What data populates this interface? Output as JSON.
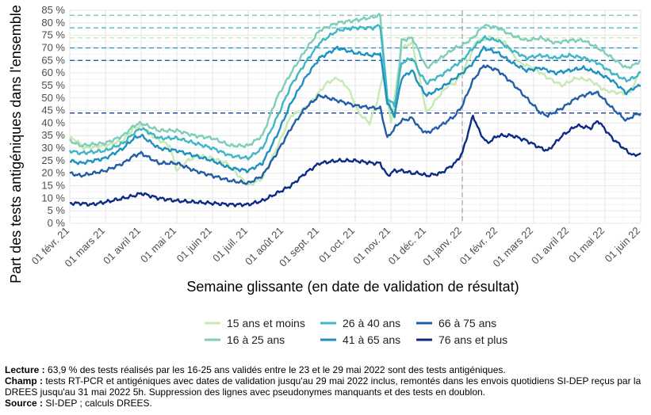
{
  "chart_data": {
    "type": "line",
    "ylabel": "Part des tests antigéniques dans l'ensemble",
    "xlabel": "Semaine glissante (en date de validation de résultat)",
    "ylim": [
      0,
      85
    ],
    "yticks": [
      "0 %",
      "5 %",
      "10 %",
      "15 %",
      "20 %",
      "25 %",
      "30 %",
      "35 %",
      "40 %",
      "45 %",
      "50 %",
      "55 %",
      "60 %",
      "65 %",
      "70 %",
      "75 %",
      "80 %",
      "85 %"
    ],
    "x_range_months": [
      0,
      16
    ],
    "xticks": [
      {
        "m": 0,
        "label": "01 févr. 21"
      },
      {
        "m": 1,
        "label": "01 mars 21"
      },
      {
        "m": 2,
        "label": "01 avril 21"
      },
      {
        "m": 3,
        "label": "01 mai 21"
      },
      {
        "m": 4,
        "label": "01 juin 21"
      },
      {
        "m": 5,
        "label": "01 juil. 21"
      },
      {
        "m": 6,
        "label": "01 août 21"
      },
      {
        "m": 7,
        "label": "01 sept. 21"
      },
      {
        "m": 8,
        "label": "01 oct. 21"
      },
      {
        "m": 9,
        "label": "01 nov. 21"
      },
      {
        "m": 10,
        "label": "01 déc. 21"
      },
      {
        "m": 11,
        "label": "01 janv. 22"
      },
      {
        "m": 12,
        "label": "01 févr. 22"
      },
      {
        "m": 13,
        "label": "01 mars 22"
      },
      {
        "m": 14,
        "label": "01 avril 22"
      },
      {
        "m": 15,
        "label": "01 mai 22"
      },
      {
        "m": 16,
        "label": "01 juin 22"
      }
    ],
    "vline_month": 11,
    "series": [
      {
        "name": "15 ans et moins",
        "color": "#c7e9b4",
        "hline": 74,
        "points": [
          [
            0,
            34
          ],
          [
            0.2,
            33
          ],
          [
            0.4,
            30
          ],
          [
            1,
            31
          ],
          [
            1.5,
            33
          ],
          [
            1.8,
            38
          ],
          [
            2,
            39
          ],
          [
            2.4,
            34
          ],
          [
            2.8,
            31
          ],
          [
            3,
            21
          ],
          [
            3.3,
            25
          ],
          [
            3.6,
            27
          ],
          [
            4,
            26
          ],
          [
            4.4,
            24
          ],
          [
            4.8,
            18
          ],
          [
            5,
            15
          ],
          [
            5.4,
            18
          ],
          [
            5.8,
            30
          ],
          [
            6.2,
            43
          ],
          [
            6.5,
            45
          ],
          [
            6.8,
            49
          ],
          [
            7.2,
            56
          ],
          [
            7.5,
            58
          ],
          [
            7.8,
            54
          ],
          [
            8.1,
            44
          ],
          [
            8.4,
            40
          ],
          [
            8.6,
            48
          ],
          [
            8.8,
            60
          ],
          [
            9,
            40
          ],
          [
            9.3,
            70
          ],
          [
            9.6,
            72
          ],
          [
            9.8,
            58
          ],
          [
            10,
            44
          ],
          [
            10.3,
            50
          ],
          [
            10.6,
            55
          ],
          [
            10.8,
            56
          ],
          [
            11,
            60
          ],
          [
            11.2,
            66
          ],
          [
            11.4,
            73
          ],
          [
            11.8,
            74
          ],
          [
            12.2,
            72
          ],
          [
            12.6,
            64
          ],
          [
            13,
            62
          ],
          [
            13.4,
            58
          ],
          [
            13.8,
            55
          ],
          [
            14.2,
            58
          ],
          [
            14.6,
            57
          ],
          [
            15,
            53
          ],
          [
            15.4,
            52
          ],
          [
            15.7,
            52
          ],
          [
            15.9,
            58
          ]
        ]
      },
      {
        "name": "16 à 25 ans",
        "color": "#7fcdbb",
        "hline": 83,
        "points": [
          [
            0,
            33
          ],
          [
            0.3,
            31
          ],
          [
            1,
            32
          ],
          [
            1.5,
            35
          ],
          [
            1.8,
            39
          ],
          [
            2,
            40
          ],
          [
            2.5,
            37
          ],
          [
            3,
            37
          ],
          [
            3.5,
            35
          ],
          [
            4,
            34
          ],
          [
            4.5,
            31
          ],
          [
            5,
            31
          ],
          [
            5.4,
            35
          ],
          [
            5.8,
            50
          ],
          [
            6.2,
            60
          ],
          [
            6.6,
            69
          ],
          [
            7,
            77
          ],
          [
            7.5,
            80
          ],
          [
            8,
            81
          ],
          [
            8.4,
            82
          ],
          [
            8.7,
            83
          ],
          [
            8.9,
            50
          ],
          [
            9.1,
            42
          ],
          [
            9.3,
            73
          ],
          [
            9.6,
            74
          ],
          [
            9.8,
            68
          ],
          [
            10,
            62
          ],
          [
            10.4,
            66
          ],
          [
            10.8,
            70
          ],
          [
            11,
            71
          ],
          [
            11.3,
            74
          ],
          [
            11.6,
            79
          ],
          [
            12,
            78
          ],
          [
            12.4,
            75
          ],
          [
            12.8,
            73
          ],
          [
            13.2,
            74
          ],
          [
            13.6,
            72
          ],
          [
            14,
            73
          ],
          [
            14.4,
            73
          ],
          [
            14.8,
            70
          ],
          [
            15.2,
            66
          ],
          [
            15.6,
            62
          ],
          [
            15.8,
            63
          ],
          [
            16,
            65
          ]
        ]
      },
      {
        "name": "26 à 40 ans",
        "color": "#41b6c4",
        "hline": 78,
        "points": [
          [
            0,
            29
          ],
          [
            0.3,
            28
          ],
          [
            1,
            29
          ],
          [
            1.5,
            32
          ],
          [
            1.8,
            36
          ],
          [
            2,
            38
          ],
          [
            2.5,
            34
          ],
          [
            3,
            34
          ],
          [
            3.5,
            32
          ],
          [
            4,
            30
          ],
          [
            4.5,
            27
          ],
          [
            5,
            26
          ],
          [
            5.4,
            30
          ],
          [
            5.8,
            42
          ],
          [
            6.2,
            55
          ],
          [
            6.6,
            64
          ],
          [
            7,
            72
          ],
          [
            7.5,
            77
          ],
          [
            8,
            78
          ],
          [
            8.5,
            78
          ],
          [
            8.7,
            79
          ],
          [
            8.9,
            50
          ],
          [
            9.1,
            47
          ],
          [
            9.3,
            64
          ],
          [
            9.6,
            66
          ],
          [
            9.8,
            60
          ],
          [
            10,
            56
          ],
          [
            10.4,
            59
          ],
          [
            10.8,
            63
          ],
          [
            11,
            65
          ],
          [
            11.3,
            70
          ],
          [
            11.6,
            74
          ],
          [
            12,
            73
          ],
          [
            12.4,
            69
          ],
          [
            12.8,
            66
          ],
          [
            13.2,
            67
          ],
          [
            13.6,
            66
          ],
          [
            14,
            67
          ],
          [
            14.4,
            66
          ],
          [
            14.8,
            64
          ],
          [
            15.2,
            60
          ],
          [
            15.6,
            57
          ],
          [
            15.8,
            58
          ],
          [
            16,
            60
          ]
        ]
      },
      {
        "name": "41 à 65 ans",
        "color": "#1d91c0",
        "hline": 70,
        "points": [
          [
            0,
            25
          ],
          [
            0.3,
            24
          ],
          [
            1,
            26
          ],
          [
            1.5,
            30
          ],
          [
            1.8,
            34
          ],
          [
            2,
            35
          ],
          [
            2.5,
            30
          ],
          [
            3,
            29
          ],
          [
            3.5,
            27
          ],
          [
            4,
            25
          ],
          [
            4.5,
            22
          ],
          [
            5,
            21
          ],
          [
            5.4,
            24
          ],
          [
            5.8,
            35
          ],
          [
            6.2,
            48
          ],
          [
            6.6,
            58
          ],
          [
            7,
            66
          ],
          [
            7.5,
            70
          ],
          [
            8,
            68
          ],
          [
            8.5,
            67
          ],
          [
            8.7,
            68
          ],
          [
            8.9,
            48
          ],
          [
            9.1,
            43
          ],
          [
            9.3,
            58
          ],
          [
            9.6,
            61
          ],
          [
            9.8,
            55
          ],
          [
            10,
            51
          ],
          [
            10.4,
            54
          ],
          [
            10.8,
            58
          ],
          [
            11,
            60
          ],
          [
            11.3,
            64
          ],
          [
            11.6,
            70
          ],
          [
            12,
            68
          ],
          [
            12.4,
            64
          ],
          [
            12.8,
            61
          ],
          [
            13.2,
            62
          ],
          [
            13.6,
            60
          ],
          [
            14,
            61
          ],
          [
            14.4,
            62
          ],
          [
            14.8,
            60
          ],
          [
            15.2,
            57
          ],
          [
            15.6,
            52
          ],
          [
            15.8,
            54
          ],
          [
            16,
            55
          ]
        ]
      },
      {
        "name": "66 à 75 ans",
        "color": "#225ea8",
        "hline": 65,
        "points": [
          [
            0,
            20
          ],
          [
            0.3,
            19
          ],
          [
            1,
            21
          ],
          [
            1.5,
            24
          ],
          [
            1.8,
            27
          ],
          [
            2,
            28
          ],
          [
            2.5,
            24
          ],
          [
            3,
            24
          ],
          [
            3.5,
            21
          ],
          [
            4,
            19
          ],
          [
            4.5,
            17
          ],
          [
            5,
            16
          ],
          [
            5.4,
            19
          ],
          [
            5.8,
            28
          ],
          [
            6.2,
            38
          ],
          [
            6.6,
            46
          ],
          [
            7,
            51
          ],
          [
            7.5,
            49
          ],
          [
            8,
            47
          ],
          [
            8.5,
            46
          ],
          [
            8.7,
            46
          ],
          [
            8.9,
            34
          ],
          [
            9.1,
            38
          ],
          [
            9.3,
            41
          ],
          [
            9.6,
            42
          ],
          [
            9.8,
            38
          ],
          [
            10,
            36
          ],
          [
            10.4,
            39
          ],
          [
            10.8,
            43
          ],
          [
            11,
            47
          ],
          [
            11.3,
            57
          ],
          [
            11.6,
            63
          ],
          [
            12,
            61
          ],
          [
            12.4,
            56
          ],
          [
            12.8,
            50
          ],
          [
            13.2,
            44
          ],
          [
            13.4,
            43
          ],
          [
            13.8,
            46
          ],
          [
            14.2,
            50
          ],
          [
            14.6,
            52
          ],
          [
            14.8,
            52
          ],
          [
            15.2,
            46
          ],
          [
            15.6,
            41
          ],
          [
            15.8,
            43
          ],
          [
            16,
            44
          ]
        ]
      },
      {
        "name": "76 ans et plus",
        "color": "#0c2c84",
        "hline": 44,
        "points": [
          [
            0,
            8
          ],
          [
            0.3,
            8
          ],
          [
            0.6,
            7.5
          ],
          [
            1,
            8.5
          ],
          [
            1.5,
            10
          ],
          [
            1.8,
            11
          ],
          [
            2,
            12
          ],
          [
            2.5,
            10
          ],
          [
            3,
            9
          ],
          [
            3.5,
            8.5
          ],
          [
            4,
            8
          ],
          [
            4.5,
            7.5
          ],
          [
            5,
            7.5
          ],
          [
            5.4,
            9
          ],
          [
            5.8,
            12
          ],
          [
            6.2,
            15
          ],
          [
            6.6,
            20
          ],
          [
            7,
            24
          ],
          [
            7.5,
            25
          ],
          [
            8,
            25
          ],
          [
            8.5,
            24
          ],
          [
            8.7,
            24
          ],
          [
            8.9,
            19
          ],
          [
            9.1,
            21
          ],
          [
            9.3,
            21
          ],
          [
            9.6,
            20
          ],
          [
            9.8,
            20
          ],
          [
            10,
            19
          ],
          [
            10.4,
            20
          ],
          [
            10.8,
            24
          ],
          [
            11,
            28
          ],
          [
            11.3,
            43
          ],
          [
            11.5,
            36
          ],
          [
            11.7,
            32
          ],
          [
            12,
            35
          ],
          [
            12.4,
            35
          ],
          [
            12.8,
            33
          ],
          [
            13.2,
            30
          ],
          [
            13.4,
            29
          ],
          [
            13.8,
            35
          ],
          [
            14.2,
            39
          ],
          [
            14.6,
            38
          ],
          [
            14.8,
            41
          ],
          [
            15.2,
            34
          ],
          [
            15.6,
            29
          ],
          [
            15.8,
            27
          ],
          [
            16,
            28
          ]
        ]
      }
    ]
  },
  "notes": {
    "lecture_label": "Lecture :",
    "lecture_text": " 63,9 % des tests réalisés par les 16-25 ans validés entre le 23 et le 29 mai 2022 sont des tests antigéniques.",
    "champ_label": "Champ :",
    "champ_text": " tests RT-PCR et antigéniques avec dates de validation jusqu'au 29 mai 2022 inclus, remontés dans les envois quotidiens SI-DEP reçus par la DREES jusqu'au 31 mai 2022 5h. Suppression des lignes avec pseudonymes manquants et des tests en doublon.",
    "source_label": "Source :",
    "source_text": " SI-DEP ; calculs DREES."
  }
}
